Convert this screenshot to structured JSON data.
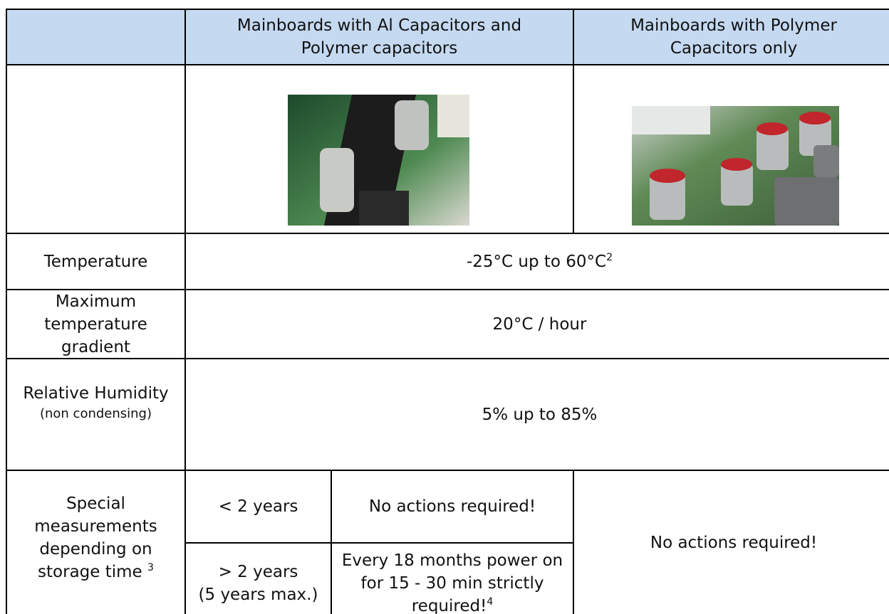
{
  "table": {
    "header": [
      "Mainboards with Al Capacitors and Polymer capacitors",
      "Mainboards with Polymer Capacitors only"
    ],
    "rows": [
      {
        "label": "Temperature",
        "value": "-25°C up to 60°C",
        "note": "2"
      },
      {
        "label": "Maximum temperature gradient",
        "value": "20°C / hour"
      },
      {
        "label": "Relative Humidity",
        "sublabel": "(non condensing)",
        "value": "5% up to 85%"
      }
    ],
    "storage": {
      "label": "Special measurements depending on storage time",
      "note": "3",
      "periods": [
        {
          "time": "< 2 years",
          "action": "No actions required!"
        },
        {
          "time": "> 2 years",
          "subtime": "(5 years max.)",
          "action": "Every 18 months power on for 15 - 30 min strictly required!",
          "note": "4"
        }
      ],
      "polymer_action": "No actions required!"
    }
  }
}
